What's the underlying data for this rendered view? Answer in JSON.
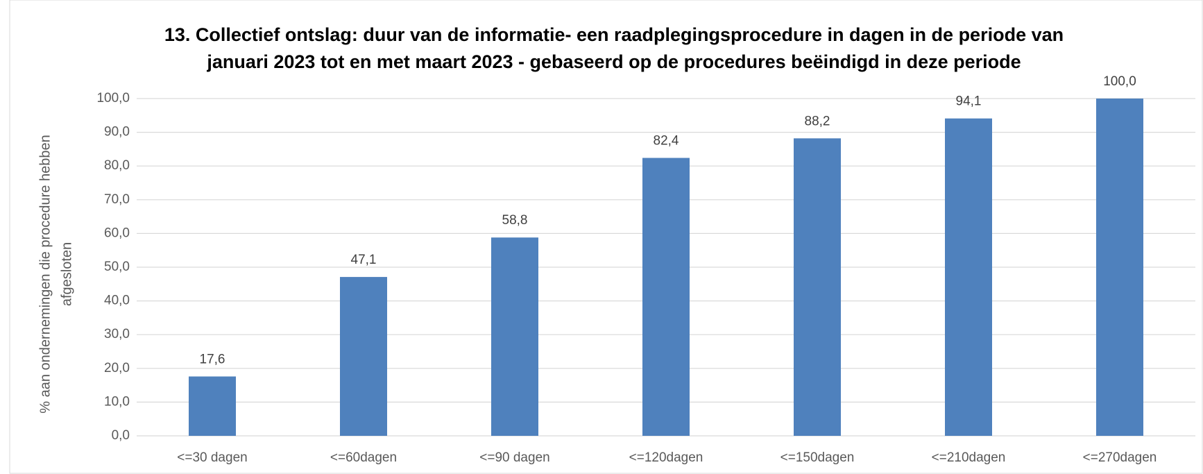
{
  "chart_data": {
    "type": "bar",
    "title": [
      "13. Collectief ontslag: duur van de informatie- een raadplegingsprocedure in dagen in de periode van",
      "januari 2023 tot en met maart 2023 - gebaseerd op de procedures beëindigd in deze periode"
    ],
    "ylabel": [
      "% aan ondernemingen die procedure hebben",
      "afgesloten"
    ],
    "categories": [
      "<=30 dagen",
      "<=60dagen",
      "<=90 dagen",
      "<=120dagen",
      "<=150dagen",
      "<=210dagen",
      "<=270dagen"
    ],
    "values": [
      17.6,
      47.1,
      58.8,
      82.4,
      88.2,
      94.1,
      100.0
    ],
    "value_labels": [
      "17,6",
      "47,1",
      "58,8",
      "82,4",
      "88,2",
      "94,1",
      "100,0"
    ],
    "color": "#4f81bd",
    "ylim": [
      0,
      100
    ],
    "yticks": [
      {
        "value": 0,
        "label": "0,0"
      },
      {
        "value": 10,
        "label": "10,0"
      },
      {
        "value": 20,
        "label": "20,0"
      },
      {
        "value": 30,
        "label": "30,0"
      },
      {
        "value": 40,
        "label": "40,0"
      },
      {
        "value": 50,
        "label": "50,0"
      },
      {
        "value": 60,
        "label": "60,0"
      },
      {
        "value": 70,
        "label": "70,0"
      },
      {
        "value": 80,
        "label": "80,0"
      },
      {
        "value": 90,
        "label": "90,0"
      },
      {
        "value": 100,
        "label": "100,0"
      }
    ],
    "grid": true
  }
}
